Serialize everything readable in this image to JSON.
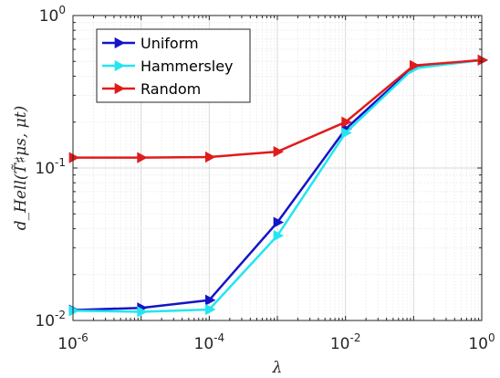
{
  "chart_data": {
    "type": "line",
    "xscale": "log",
    "yscale": "log",
    "xlim": [
      1e-06,
      1
    ],
    "ylim": [
      0.01,
      1
    ],
    "grid": true,
    "minor_grid": true,
    "legend_position": "top-left",
    "xlabel": "λ",
    "ylabel": "d_Hell(T̃♯μs, μt)",
    "x_ticks": [
      {
        "value": 1e-06,
        "base": "10",
        "exp": "-6"
      },
      {
        "value": 0.0001,
        "base": "10",
        "exp": "-4"
      },
      {
        "value": 0.01,
        "base": "10",
        "exp": "-2"
      },
      {
        "value": 1,
        "base": "10",
        "exp": "0"
      }
    ],
    "y_ticks": [
      {
        "value": 0.01,
        "base": "10",
        "exp": "-2"
      },
      {
        "value": 0.1,
        "base": "10",
        "exp": "-1"
      },
      {
        "value": 1,
        "base": "10",
        "exp": "0"
      }
    ],
    "x": [
      1e-06,
      1e-05,
      0.0001,
      0.001,
      0.01,
      0.1,
      1
    ],
    "series": [
      {
        "name": "Uniform",
        "color": "#1414c8",
        "marker": "triangle-right",
        "values": [
          0.0117,
          0.0121,
          0.0136,
          0.044,
          0.18,
          0.46,
          0.51
        ]
      },
      {
        "name": "Hammersley",
        "color": "#22e6f0",
        "marker": "triangle-right",
        "values": [
          0.0116,
          0.0114,
          0.0118,
          0.036,
          0.17,
          0.45,
          0.51
        ]
      },
      {
        "name": "Random",
        "color": "#e01b1b",
        "marker": "triangle-right",
        "values": [
          0.117,
          0.117,
          0.118,
          0.128,
          0.2,
          0.47,
          0.51
        ]
      }
    ]
  }
}
